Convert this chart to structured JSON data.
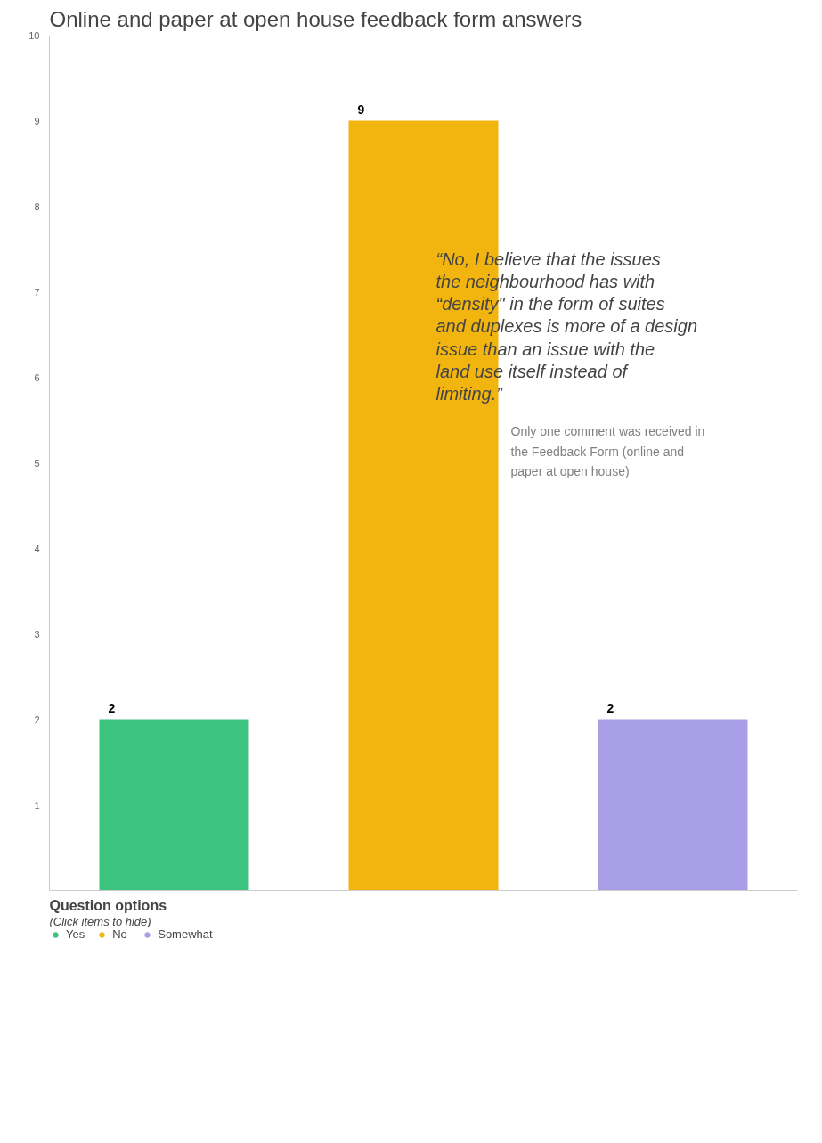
{
  "chart_data": {
    "type": "bar",
    "title": "Online and paper at open house feedback form answers",
    "categories": [
      null,
      null,
      null
    ],
    "series": [
      {
        "name": "Yes",
        "color": "#3cc47f",
        "values": [
          2,
          null,
          null
        ]
      },
      {
        "name": "No",
        "color": "#f2b50f",
        "values": [
          null,
          9,
          null
        ]
      },
      {
        "name": "Somewhat",
        "color": "#a99fe6",
        "values": [
          null,
          null,
          2
        ]
      }
    ],
    "ylim": [
      0,
      10
    ],
    "yticks": [
      1,
      2,
      3,
      4,
      5,
      6,
      7,
      8,
      9,
      10
    ],
    "tick_labels": "y",
    "grid": false,
    "data_labels": true,
    "legend": "bottom left",
    "legend_title": "Question options",
    "annotations": [
      "(Click items to hide)",
      "“No, I believe that the issues the neighbourhood has with “density\" in the form of suites and duplexes is more of a design issue than an issue with the land use itself instead of limiting.”",
      "Only one comment was received in the Feedback Form (online and paper at open house)"
    ]
  }
}
